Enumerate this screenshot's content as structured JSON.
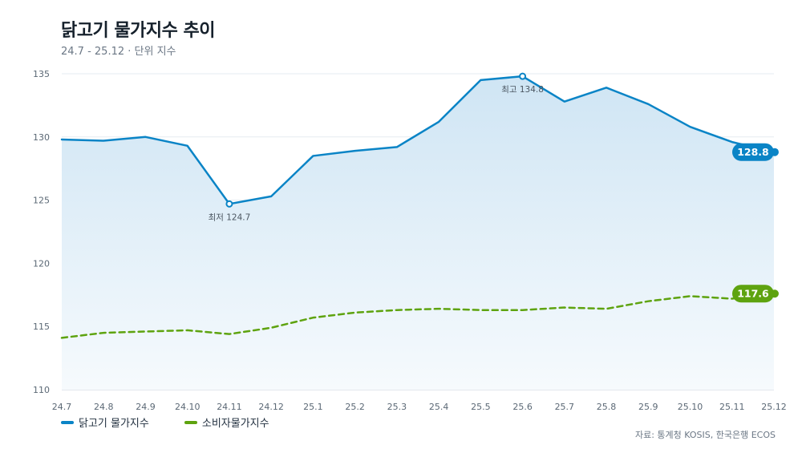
{
  "title": "닭고기 물가지수 추이",
  "subtitle": "24.7 - 25.12 · 단위 지수",
  "source": "자료: 통계청 KOSIS, 한국은행 ECOS",
  "colors": {
    "chicken": "#0a84c6",
    "cpi": "#5ea30f",
    "area_top": "#cfe5f4",
    "area_bottom": "#f6fafd",
    "grid": "#e6ebf0",
    "axis_text": "#5b6875"
  },
  "chart_data": {
    "type": "line",
    "title": "닭고기 물가지수 추이",
    "categories": [
      "24.7",
      "24.8",
      "24.9",
      "24.10",
      "24.11",
      "24.12",
      "25.1",
      "25.2",
      "25.3",
      "25.4",
      "25.5",
      "25.6",
      "25.7",
      "25.8",
      "25.9",
      "25.10",
      "25.11",
      "25.12"
    ],
    "ylim": [
      110,
      135
    ],
    "yticks": [
      110,
      115,
      120,
      125,
      130,
      135
    ],
    "grid": true,
    "legend": "bottom-left",
    "series": [
      {
        "name": "닭고기 물가지수",
        "style": "solid-area",
        "values": [
          129.8,
          129.7,
          130.0,
          129.3,
          124.7,
          125.3,
          128.5,
          128.9,
          129.2,
          131.2,
          134.5,
          134.8,
          132.8,
          133.9,
          132.6,
          130.8,
          129.6,
          128.8
        ],
        "end_label": "128.8"
      },
      {
        "name": "소비자물가지수",
        "style": "dashed",
        "values": [
          114.1,
          114.5,
          114.6,
          114.7,
          114.4,
          114.9,
          115.7,
          116.1,
          116.3,
          116.4,
          116.3,
          116.3,
          116.5,
          116.4,
          117.0,
          117.4,
          117.2,
          117.6
        ],
        "end_label": "117.6"
      }
    ],
    "annotations": [
      {
        "series": 0,
        "index": 4,
        "text": "최저 124.7"
      },
      {
        "series": 0,
        "index": 11,
        "text": "최고 134.8"
      }
    ]
  }
}
